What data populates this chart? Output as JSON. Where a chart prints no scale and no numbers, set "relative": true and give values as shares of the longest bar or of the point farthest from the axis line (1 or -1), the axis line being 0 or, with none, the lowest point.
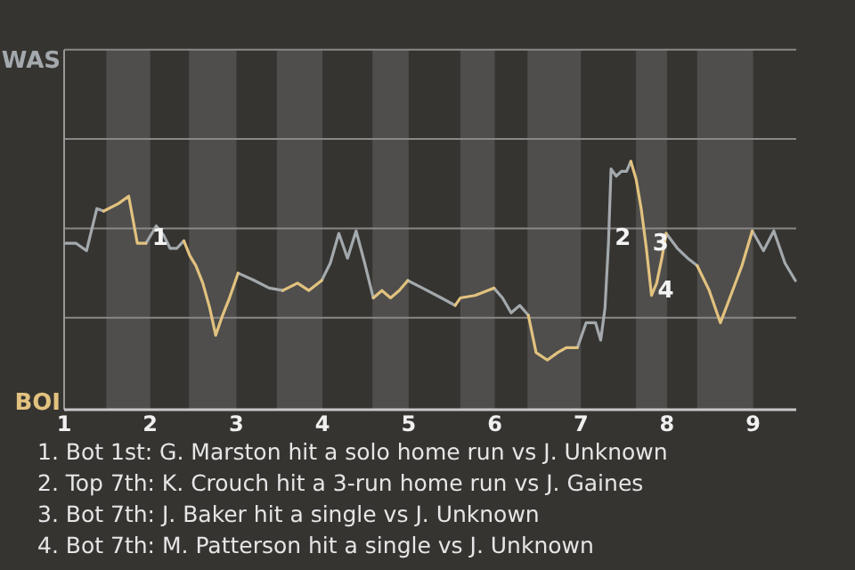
{
  "chart_data": {
    "type": "line",
    "relative": true,
    "x": [
      1.02,
      1.14,
      1.26,
      1.38,
      1.46,
      1.63,
      1.75,
      1.85,
      1.95,
      2.07,
      2.16,
      2.23,
      2.31,
      2.39,
      2.46,
      2.53,
      2.61,
      2.69,
      2.76,
      2.84,
      2.92,
      3.02,
      3.21,
      3.38,
      3.54,
      3.71,
      3.84,
      3.99,
      4.09,
      4.19,
      4.29,
      4.39,
      4.49,
      4.59,
      4.69,
      4.79,
      4.89,
      4.99,
      5.16,
      5.38,
      5.54,
      5.6,
      5.77,
      5.99,
      6.09,
      6.19,
      6.29,
      6.39,
      6.48,
      6.61,
      6.73,
      6.83,
      6.96,
      7.06,
      7.17,
      7.23,
      7.28,
      7.32,
      7.35,
      7.41,
      7.47,
      7.53,
      7.58,
      7.64,
      7.7,
      7.76,
      7.82,
      7.88,
      7.94,
      7.99,
      8.12,
      8.24,
      8.35,
      8.49,
      8.62,
      8.74,
      8.87,
      8.99,
      9.12,
      9.24,
      9.37,
      9.49
    ],
    "series": [
      {
        "name": "WAS",
        "color": "#a3a9ac",
        "values": [
          0.67,
          0.67,
          0.64,
          0.81,
          0.8,
          null,
          null,
          null,
          0.67,
          0.74,
          0.7,
          0.65,
          0.65,
          0.68,
          null,
          null,
          null,
          null,
          null,
          null,
          null,
          0.55,
          0.52,
          0.49,
          0.48,
          null,
          null,
          0.52,
          0.59,
          0.71,
          0.61,
          0.72,
          0.59,
          0.45,
          null,
          null,
          null,
          0.52,
          0.49,
          0.45,
          0.42,
          null,
          null,
          0.49,
          0.45,
          0.39,
          0.42,
          0.38,
          null,
          null,
          null,
          null,
          0.25,
          0.35,
          0.35,
          0.28,
          0.41,
          0.67,
          0.97,
          0.94,
          0.96,
          0.96,
          1,
          null,
          null,
          null,
          null,
          null,
          null,
          0.71,
          0.65,
          0.61,
          0.58,
          null,
          null,
          null,
          null,
          0.72,
          0.64,
          0.72,
          0.59,
          0.52
        ]
      },
      {
        "name": "BOI",
        "color": "#e2c27f",
        "values": [
          null,
          null,
          null,
          null,
          0.8,
          0.83,
          0.86,
          0.67,
          0.67,
          null,
          null,
          null,
          null,
          0.68,
          0.62,
          0.58,
          0.51,
          0.41,
          0.3,
          0.38,
          0.45,
          0.55,
          null,
          null,
          0.48,
          0.51,
          0.48,
          0.52,
          null,
          null,
          null,
          null,
          null,
          0.45,
          0.48,
          0.45,
          0.48,
          0.52,
          null,
          null,
          0.42,
          0.45,
          0.46,
          0.49,
          null,
          null,
          null,
          0.38,
          0.23,
          0.2,
          0.23,
          0.25,
          0.25,
          null,
          null,
          null,
          null,
          null,
          null,
          null,
          null,
          null,
          1,
          0.93,
          0.81,
          0.65,
          0.46,
          0.51,
          0.61,
          0.71,
          null,
          null,
          0.58,
          0.48,
          0.35,
          0.46,
          0.58,
          0.72,
          null,
          null,
          null,
          null
        ]
      }
    ],
    "xlim": [
      1,
      9.5
    ],
    "xticks": [
      1,
      2,
      3,
      4,
      5,
      6,
      7,
      8,
      9
    ],
    "ref_lines": [
      {
        "axis": "y",
        "value": 0.37,
        "color": "#8a8886"
      },
      {
        "axis": "y",
        "value": 0.73,
        "color": "#8a8886"
      },
      {
        "axis": "y",
        "value": 1.09,
        "color": "#8a8886"
      },
      {
        "axis": "y",
        "value": 1.45,
        "color": "#8a8886"
      }
    ],
    "legend": "left",
    "marker": "none",
    "line_style": "solid",
    "bands": [
      {
        "axis": "x",
        "from": 1.49,
        "to": 2,
        "color": "#4f4e4c"
      },
      {
        "axis": "x",
        "from": 2.45,
        "to": 3,
        "color": "#4f4e4c"
      },
      {
        "axis": "x",
        "from": 3.47,
        "to": 4,
        "color": "#4f4e4c"
      },
      {
        "axis": "x",
        "from": 4.58,
        "to": 5,
        "color": "#4f4e4c"
      },
      {
        "axis": "x",
        "from": 5.6,
        "to": 6,
        "color": "#4f4e4c"
      },
      {
        "axis": "x",
        "from": 6.38,
        "to": 7,
        "color": "#4f4e4c"
      },
      {
        "axis": "x",
        "from": 7.64,
        "to": 8,
        "color": "#4f4e4c"
      },
      {
        "axis": "x",
        "from": 8.35,
        "to": 9,
        "color": "#4f4e4c"
      }
    ],
    "annotations": [
      {
        "text": "1",
        "x": 1.95,
        "y": 0.67
      },
      {
        "text": "2",
        "x": 7.32,
        "y": 0.67
      },
      {
        "text": "3",
        "x": 7.76,
        "y": 0.65
      },
      {
        "text": "4",
        "x": 7.82,
        "y": 0.46
      },
      "1. Bot 1st: G. Marston hit a solo home run vs J. Unknown",
      "2. Top 7th: K. Crouch hit a 3-run home run vs J. Gaines",
      "3. Bot 7th: J. Baker hit a single vs J. Unknown",
      "4. Bot 7th: M. Patterson hit a single vs J. Unknown"
    ]
  }
}
